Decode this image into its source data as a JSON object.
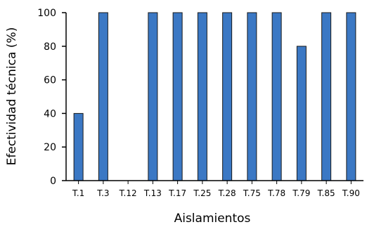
{
  "chart_data": {
    "type": "bar",
    "categories": [
      "T.1",
      "T.3",
      "T.12",
      "T.13",
      "T.17",
      "T.25",
      "T.28",
      "T.75",
      "T.78",
      "T.79",
      "T.85",
      "T.90"
    ],
    "values": [
      40,
      100,
      0,
      100,
      100,
      100,
      100,
      100,
      100,
      80,
      100,
      100
    ],
    "xlabel": "Aislamientos",
    "ylabel": "Efectividad técnica (%)",
    "ylim": [
      0,
      100
    ],
    "yticks": [
      0,
      20,
      40,
      60,
      80,
      100
    ],
    "grid": false,
    "bar_color": "#3b78c4",
    "bar_edge_color": "#1a1a1a"
  }
}
